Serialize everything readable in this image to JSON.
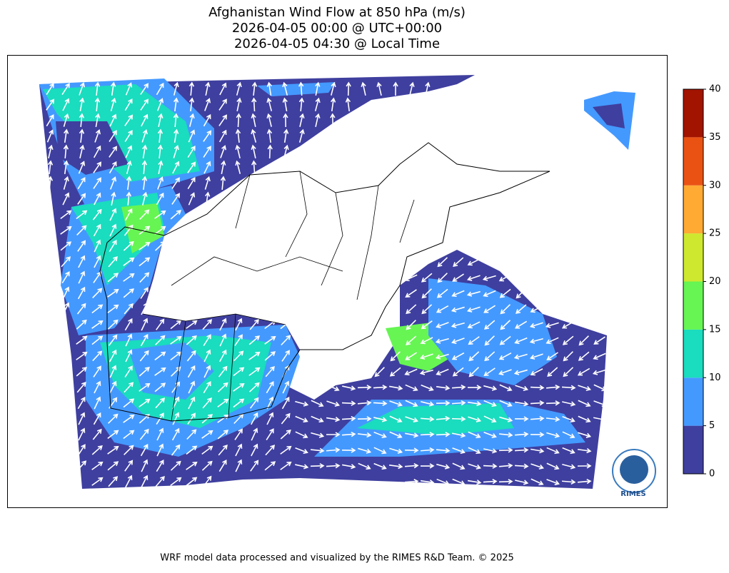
{
  "header": {
    "title_lines": [
      "Afghanistan Wind Flow at 850 hPa (m/s)",
      "2026-04-05 00:00 @ UTC+00:00",
      "2026-04-05 04:30 @ Local Time"
    ]
  },
  "colorbar": {
    "ticks": [
      0,
      5,
      10,
      15,
      20,
      25,
      30,
      35,
      40
    ],
    "colors": [
      "#3f3f9f",
      "#4499ff",
      "#1adcbe",
      "#66f553",
      "#cde82e",
      "#ffaa33",
      "#ea5214",
      "#a21400"
    ]
  },
  "logo": {
    "text": "RIMES"
  },
  "footer": {
    "text": "WRF model data processed and visualized by the RIMES R&D Team. © 2025"
  }
}
